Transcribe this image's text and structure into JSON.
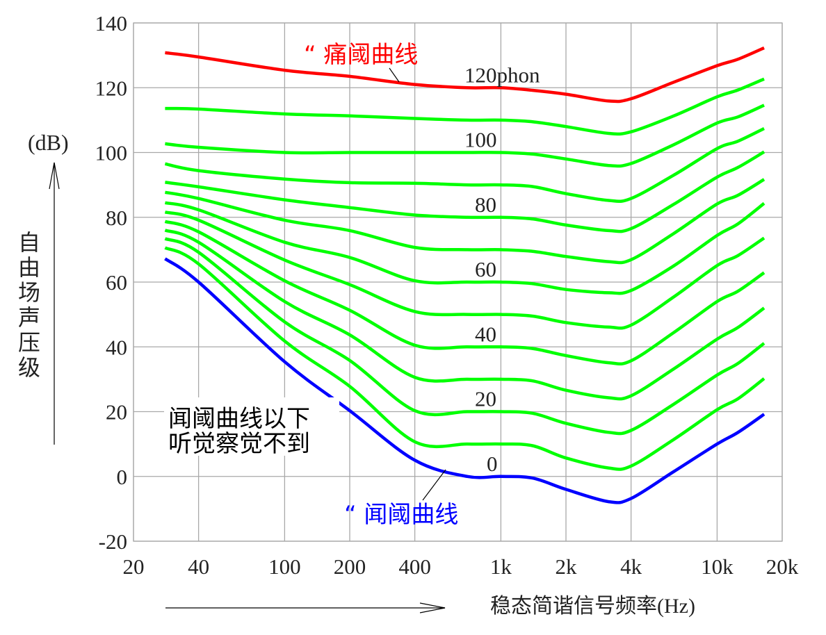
{
  "chart_data": {
    "type": "line",
    "xscale": "log",
    "xlim": [
      20,
      20000
    ],
    "ylim": [
      -20,
      140
    ],
    "grid": true,
    "x_ticks": [
      {
        "value": 20,
        "label": "20"
      },
      {
        "value": 40,
        "label": "40"
      },
      {
        "value": 100,
        "label": "100"
      },
      {
        "value": 200,
        "label": "200"
      },
      {
        "value": 400,
        "label": "400"
      },
      {
        "value": 1000,
        "label": "1k"
      },
      {
        "value": 2000,
        "label": "2k"
      },
      {
        "value": 4000,
        "label": "4k"
      },
      {
        "value": 10000,
        "label": "10k"
      },
      {
        "value": 20000,
        "label": "20k"
      }
    ],
    "y_ticks": [
      140,
      120,
      100,
      80,
      60,
      40,
      20,
      0,
      -20
    ],
    "ylabel_unit": "(dB)",
    "ylabel": "自由场声压级",
    "xlabel": "稳态简谐信号频率(Hz)",
    "x": [
      28,
      40,
      100,
      200,
      400,
      700,
      1000,
      1400,
      2000,
      3150,
      4000,
      6300,
      10000,
      12500,
      16500
    ],
    "series": [
      {
        "phon": 120,
        "name": "痛阈曲线",
        "color": "#ff0000",
        "values": [
          130.8,
          129.5,
          125.4,
          123.5,
          121,
          120,
          120,
          119.2,
          118,
          115.9,
          116.6,
          121.7,
          126.8,
          128.8,
          132.3
        ]
      },
      {
        "phon": 110,
        "color": "#00ff00",
        "values": [
          113.6,
          113.4,
          111.9,
          111.3,
          110.5,
          110,
          110,
          109.5,
          108,
          105.9,
          106.4,
          111.3,
          117.2,
          119.3,
          122.7
        ]
      },
      {
        "phon": 100,
        "color": "#00ff00",
        "values": [
          102.7,
          101.6,
          100,
          100,
          100,
          100,
          100,
          99.5,
          98,
          96,
          96.6,
          102.4,
          109.1,
          111,
          114.6
        ]
      },
      {
        "phon": 90,
        "color": "#00ff00",
        "values": [
          96.5,
          94.4,
          91.8,
          90.7,
          90.5,
          90,
          90,
          89.5,
          87.3,
          85.2,
          85.8,
          93,
          101.2,
          103.5,
          107.4
        ]
      },
      {
        "phon": 80,
        "color": "#00ff00",
        "values": [
          90.8,
          89.4,
          85.4,
          83,
          80.7,
          80,
          80,
          79.5,
          77.6,
          75.9,
          76.5,
          84,
          92.4,
          95.4,
          100.2
        ]
      },
      {
        "phon": 70,
        "color": "#00ff00",
        "values": [
          87.7,
          85.8,
          79.1,
          75.9,
          70.7,
          70,
          70,
          69.5,
          67.9,
          66.3,
          66.9,
          75,
          84.1,
          86.8,
          91.7
        ]
      },
      {
        "phon": 60,
        "color": "#00ff00",
        "values": [
          84.5,
          82.3,
          72.3,
          67.6,
          60.4,
          60,
          60,
          59.5,
          57.7,
          56.7,
          57.4,
          65,
          74.4,
          78,
          84.3
        ]
      },
      {
        "phon": 50,
        "color": "#00ff00",
        "values": [
          81.6,
          79.1,
          66.8,
          59.2,
          50.9,
          50,
          50,
          49.5,
          47.5,
          46.1,
          46.7,
          55.4,
          65.1,
          68.2,
          73.6
        ]
      },
      {
        "phon": 40,
        "color": "#00ff00",
        "values": [
          78.7,
          75.5,
          60.4,
          51.3,
          40.5,
          40,
          40,
          39.5,
          37.3,
          35.1,
          35.7,
          44.4,
          54,
          57.2,
          62.9
        ]
      },
      {
        "phon": 30,
        "color": "#00ff00",
        "values": [
          76,
          72.3,
          54,
          43.7,
          30.6,
          30,
          30,
          29.5,
          26.6,
          24.3,
          24.9,
          33.2,
          42.4,
          46,
          52
        ]
      },
      {
        "phon": 20,
        "color": "#00ff00",
        "values": [
          73.4,
          69.2,
          47.7,
          35.8,
          20.3,
          20,
          20,
          19.5,
          16.4,
          13.6,
          14.2,
          22.3,
          31.3,
          34.9,
          41.1
        ]
      },
      {
        "phon": 10,
        "color": "#00ff00",
        "values": [
          70.6,
          65.6,
          41.8,
          27.8,
          10.7,
          10,
          10,
          9.5,
          5.7,
          2.6,
          3.2,
          11.4,
          20.6,
          24,
          30.2
        ]
      },
      {
        "phon": 0,
        "name": "闻阈曲线",
        "color": "#0000ff",
        "values": [
          67.2,
          60,
          35.4,
          20.3,
          5,
          0,
          0,
          -0.5,
          -4,
          -7.8,
          -6.8,
          1.5,
          10,
          13.6,
          19.2
        ]
      }
    ],
    "curve_labels": [
      {
        "text": "120phon",
        "phon": 120
      },
      {
        "text": "100",
        "phon": 100
      },
      {
        "text": "80",
        "phon": 80
      },
      {
        "text": "60",
        "phon": 60
      },
      {
        "text": "40",
        "phon": 40
      },
      {
        "text": "20",
        "phon": 20
      },
      {
        "text": "0",
        "phon": 0
      }
    ],
    "annotations": {
      "pain": "“ 痛阈曲线",
      "threshold": "“ 闻阈曲线",
      "below_line1": "闻阈曲线以下",
      "below_line2": "听觉察觉不到"
    },
    "colors": {
      "pain": "#ff0000",
      "threshold": "#0000ff",
      "contour": "#00ff00",
      "grid": "#a8a8a8"
    }
  }
}
